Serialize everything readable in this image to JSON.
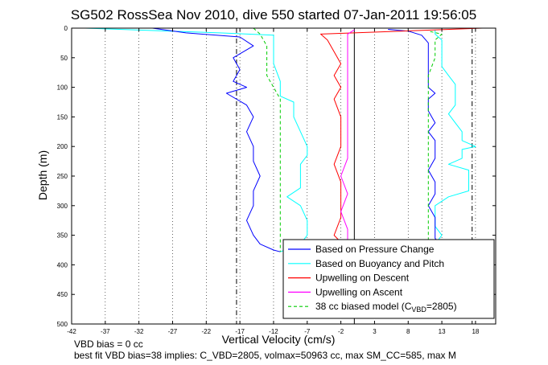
{
  "chart_data": {
    "type": "line",
    "title": "SG502 RossSea Nov 2010, dive 550 started 07-Jan-2011 19:56:05",
    "xlabel": "Vertical Velocity (cm/s)",
    "ylabel": "Depth (m)",
    "xlim": [
      -42,
      21
    ],
    "ylim": [
      0,
      500
    ],
    "y_reversed": true,
    "xticks": [
      -42,
      -37,
      -32,
      -27,
      -22,
      -17,
      -12,
      -7,
      -2,
      3,
      8,
      13,
      18
    ],
    "xtick_labels": [
      "-42",
      "-37",
      "-32",
      "-27",
      "-22",
      "-17",
      "-12",
      "-7",
      "-2",
      "3",
      "8",
      "13",
      "18"
    ],
    "yticks": [
      0,
      50,
      100,
      150,
      200,
      250,
      300,
      350,
      400,
      450,
      500
    ],
    "ytick_labels": [
      "0",
      "50",
      "100",
      "150",
      "200",
      "250",
      "300",
      "350",
      "400",
      "450",
      "500"
    ],
    "grid": "dotted vertical lines at x ticks",
    "legend_position": "bottom-right",
    "reference_lines": [
      {
        "x": -17.5,
        "style": "dash-dot"
      },
      {
        "x": 0,
        "style": "solid"
      },
      {
        "x": 17.5,
        "style": "dash-dot"
      }
    ],
    "series": [
      {
        "name": "Based on Pressure Change",
        "color": "#0000ff",
        "descent": {
          "depth": [
            0,
            8,
            15,
            30,
            50,
            70,
            90,
            100,
            110,
            130,
            150,
            175,
            200,
            225,
            250,
            275,
            300,
            325,
            350,
            365,
            375,
            378
          ],
          "value": [
            -30,
            -25,
            -17,
            -15,
            -18,
            -17,
            -18,
            -16,
            -19,
            -16,
            -15,
            -16,
            -15,
            -15,
            -14,
            -15,
            -15,
            -16,
            -15,
            -14,
            -12,
            -11
          ]
        },
        "ascent": {
          "depth": [
            378,
            370,
            355,
            340,
            320,
            300,
            280,
            260,
            240,
            220,
            200,
            190,
            175,
            160,
            140,
            120,
            110,
            100,
            85,
            70,
            60,
            50,
            40,
            25,
            12,
            5,
            2
          ],
          "value": [
            11,
            13,
            12,
            12,
            12,
            11,
            12,
            12,
            11,
            12,
            12,
            12,
            11,
            12,
            11,
            11,
            12,
            11,
            11,
            11,
            11,
            11,
            11,
            11,
            10,
            8,
            5
          ]
        }
      },
      {
        "name": "Based on Buoyancy and Pitch",
        "color": "#00ffff",
        "descent": {
          "depth": [
            0,
            8,
            12,
            30,
            60,
            90,
            100,
            115,
            125,
            150,
            175,
            200,
            215,
            230,
            250,
            270,
            285,
            300,
            325,
            350,
            365,
            378
          ],
          "value": [
            -40,
            -20,
            -12,
            -12,
            -12,
            -11,
            -11,
            -11,
            -9,
            -9,
            -8,
            -7,
            -7,
            -8,
            -8,
            -8,
            -10,
            -8,
            -7,
            -7,
            -8,
            -11
          ]
        },
        "ascent": {
          "depth": [
            378,
            365,
            350,
            335,
            320,
            300,
            285,
            275,
            255,
            240,
            230,
            220,
            205,
            200,
            190,
            175,
            160,
            145,
            130,
            120,
            110,
            95,
            80,
            65,
            50,
            35,
            20,
            10,
            3
          ],
          "value": [
            12,
            12,
            13,
            12,
            12,
            12,
            14,
            17,
            17,
            17,
            14,
            16,
            16,
            18,
            16,
            16,
            15,
            14,
            15,
            15,
            15,
            15,
            14,
            13,
            13,
            13,
            13,
            12,
            12
          ]
        }
      },
      {
        "name": "Upwelling on Descent",
        "color": "#ff0000",
        "depth": [
          0,
          10,
          20,
          40,
          60,
          80,
          100,
          120,
          150,
          180,
          200,
          230,
          260,
          290,
          320,
          350,
          362
        ],
        "value": [
          19,
          -5,
          -4,
          -3,
          -2,
          -3,
          -2,
          -3,
          -2,
          -2,
          -2,
          -3,
          -2,
          -2,
          -2,
          -3,
          -2
        ]
      },
      {
        "name": "Upwelling on Ascent",
        "color": "#ff00ff",
        "depth": [
          362,
          340,
          310,
          280,
          250,
          220,
          190,
          160,
          130,
          100,
          80,
          60,
          45,
          30,
          20,
          10,
          3
        ],
        "value": [
          -1,
          -1,
          -2,
          -1,
          -2,
          -1,
          -1,
          -1,
          -1,
          -1,
          -1,
          -1,
          -1,
          -1,
          -1,
          -1,
          0
        ]
      },
      {
        "name": "38 cc biased model (C_VBD=2805)",
        "color": "#00cc00",
        "descent": {
          "depth": [
            0,
            10,
            30,
            50,
            80,
            100,
            120,
            150,
            200,
            250,
            300,
            350,
            378
          ],
          "value": [
            -15,
            -14,
            -13,
            -13,
            -13,
            -12,
            -11,
            -11,
            -11,
            -11,
            -11,
            -11,
            -11
          ]
        },
        "ascent": {
          "depth": [
            378,
            350,
            300,
            250,
            200,
            150,
            100,
            80,
            50,
            20,
            10,
            5
          ],
          "value": [
            11,
            11,
            11,
            11,
            11,
            11,
            11,
            11,
            12,
            12,
            13,
            11
          ]
        }
      }
    ],
    "legend": [
      {
        "label": "Based on Pressure Change",
        "color": "#0000ff",
        "dash": false
      },
      {
        "label": "Based on Buoyancy and Pitch",
        "color": "#00ffff",
        "dash": false
      },
      {
        "label": "Upwelling on Descent",
        "color": "#ff0000",
        "dash": false
      },
      {
        "label": "Upwelling on Ascent",
        "color": "#ff00ff",
        "dash": false
      },
      {
        "label": "38 cc biased model (C",
        "sub": "VBD",
        "tail": "=2805)",
        "color": "#00cc00",
        "dash": true
      }
    ]
  },
  "footer": {
    "line1": "VBD bias = 0 cc",
    "line2": "best fit VBD bias=38 implies: C_VBD=2805, volmax=50963 cc, max SM_CC=585, max M"
  }
}
